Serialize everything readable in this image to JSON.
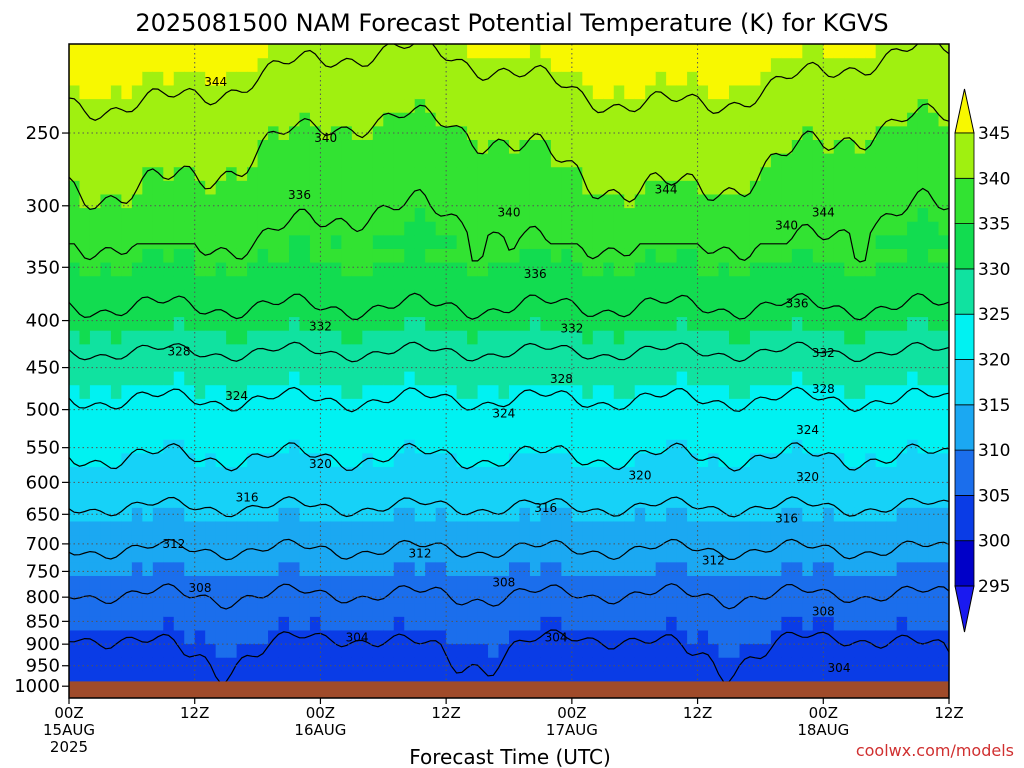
{
  "chart_data": {
    "type": "heatmap",
    "title": "2025081500 NAM Forecast Potential Temperature (K) for KGVS",
    "xlabel": "Forecast Time (UTC)",
    "ylabel": "",
    "credit": "coolwx.com/models",
    "x_range_hours": [
      0,
      84
    ],
    "x_ticks": [
      {
        "hour": 0,
        "lines": [
          "00Z",
          "15AUG",
          "2025"
        ]
      },
      {
        "hour": 12,
        "lines": [
          "12Z"
        ]
      },
      {
        "hour": 24,
        "lines": [
          "00Z",
          "16AUG"
        ]
      },
      {
        "hour": 36,
        "lines": [
          "12Z"
        ]
      },
      {
        "hour": 48,
        "lines": [
          "00Z",
          "17AUG"
        ]
      },
      {
        "hour": 60,
        "lines": [
          "12Z"
        ]
      },
      {
        "hour": 72,
        "lines": [
          "00Z",
          "18AUG"
        ]
      },
      {
        "hour": 84,
        "lines": [
          "12Z"
        ]
      }
    ],
    "y_scale": "log-pressure",
    "y_range_hpa": [
      1030,
      200
    ],
    "y_ticks": [
      250,
      300,
      350,
      400,
      450,
      500,
      550,
      600,
      650,
      700,
      750,
      800,
      850,
      900,
      950,
      1000
    ],
    "surface_hpa": 988,
    "grid": true,
    "colorbar": {
      "levels": [
        295,
        300,
        305,
        310,
        315,
        320,
        325,
        330,
        335,
        340,
        345
      ],
      "colors": [
        "#1a1af0",
        "#0000c8",
        "#0a3ce6",
        "#1b6eec",
        "#1ba8f2",
        "#16d2f8",
        "#00f2f2",
        "#10e2a0",
        "#12dc50",
        "#32e332",
        "#a0f010",
        "#f8f800"
      ],
      "extend": "both"
    },
    "contour_interval_K": 4,
    "contour_levels": [
      300,
      304,
      308,
      312,
      316,
      320,
      324,
      328,
      332,
      336,
      340,
      344
    ],
    "profile_model": {
      "pressure_hpa": [
        1000,
        950,
        900,
        850,
        800,
        750,
        700,
        650,
        600,
        550,
        500,
        450,
        400,
        350,
        300,
        250,
        200
      ],
      "theta_K": [
        301.8,
        302.8,
        304.0,
        305.8,
        307.8,
        310.0,
        312.5,
        315.3,
        318.3,
        320.6,
        323.2,
        326.5,
        331.0,
        334.8,
        337.8,
        340.8,
        346.0
      ]
    },
    "contour_labels": [
      {
        "value": 344,
        "hour": 14.0,
        "p": 220
      },
      {
        "value": 340,
        "hour": 24.5,
        "p": 253
      },
      {
        "value": 336,
        "hour": 22.0,
        "p": 292
      },
      {
        "value": 340,
        "hour": 42.0,
        "p": 305
      },
      {
        "value": 344,
        "hour": 57.0,
        "p": 288
      },
      {
        "value": 340,
        "hour": 68.5,
        "p": 315
      },
      {
        "value": 344,
        "hour": 72.0,
        "p": 305
      },
      {
        "value": 336,
        "hour": 44.5,
        "p": 356
      },
      {
        "value": 336,
        "hour": 69.5,
        "p": 383
      },
      {
        "value": 332,
        "hour": 24.0,
        "p": 406
      },
      {
        "value": 332,
        "hour": 48.0,
        "p": 408
      },
      {
        "value": 332,
        "hour": 72.0,
        "p": 434
      },
      {
        "value": 328,
        "hour": 10.5,
        "p": 432
      },
      {
        "value": 328,
        "hour": 47.0,
        "p": 463
      },
      {
        "value": 328,
        "hour": 72.0,
        "p": 475
      },
      {
        "value": 324,
        "hour": 16.0,
        "p": 483
      },
      {
        "value": 324,
        "hour": 41.5,
        "p": 505
      },
      {
        "value": 324,
        "hour": 70.5,
        "p": 526
      },
      {
        "value": 320,
        "hour": 24.0,
        "p": 573
      },
      {
        "value": 320,
        "hour": 54.5,
        "p": 590
      },
      {
        "value": 320,
        "hour": 70.5,
        "p": 592
      },
      {
        "value": 316,
        "hour": 17.0,
        "p": 623
      },
      {
        "value": 316,
        "hour": 45.5,
        "p": 640
      },
      {
        "value": 316,
        "hour": 68.5,
        "p": 657
      },
      {
        "value": 312,
        "hour": 10.0,
        "p": 700
      },
      {
        "value": 312,
        "hour": 33.5,
        "p": 717
      },
      {
        "value": 312,
        "hour": 61.5,
        "p": 730
      },
      {
        "value": 308,
        "hour": 12.5,
        "p": 782
      },
      {
        "value": 308,
        "hour": 41.5,
        "p": 771
      },
      {
        "value": 308,
        "hour": 72.0,
        "p": 829
      },
      {
        "value": 304,
        "hour": 27.5,
        "p": 885
      },
      {
        "value": 304,
        "hour": 46.5,
        "p": 885
      },
      {
        "value": 304,
        "hour": 73.5,
        "p": 955
      }
    ]
  }
}
